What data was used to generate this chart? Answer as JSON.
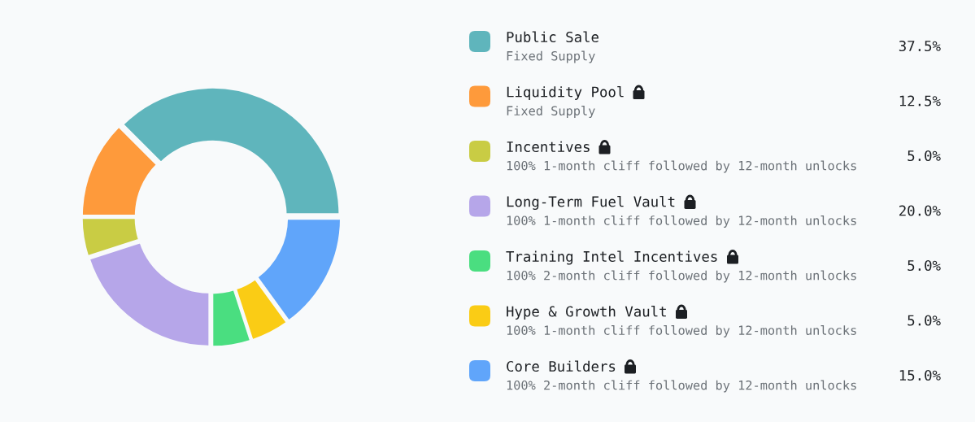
{
  "chart_data": {
    "type": "donut",
    "categories": [
      "Public Sale",
      "Liquidity Pool",
      "Incentives",
      "Long-Term Fuel Vault",
      "Training Intel Incentives",
      "Hype & Growth Vault",
      "Core Builders"
    ],
    "values": [
      37.5,
      12.5,
      5.0,
      20.0,
      5.0,
      5.0,
      15.0
    ],
    "value_labels": [
      "37.5%",
      "12.5%",
      "5.0%",
      "20.0%",
      "5.0%",
      "5.0%",
      "15.0%"
    ],
    "colors": [
      "#5fb5bc",
      "#fe9a3b",
      "#c9cc44",
      "#b6a6e9",
      "#4ade80",
      "#facc15",
      "#60a5fa"
    ],
    "annotations": [
      "Fixed Supply",
      "Fixed Supply",
      "100% 1-month cliff followed by 12-month unlocks",
      "100% 1-month cliff followed by 12-month unlocks",
      "100% 2-month cliff followed by 12-month unlocks",
      "100% 1-month cliff followed by 12-month unlocks",
      "100% 2-month cliff followed by 12-month unlocks"
    ],
    "legend": "right"
  }
}
